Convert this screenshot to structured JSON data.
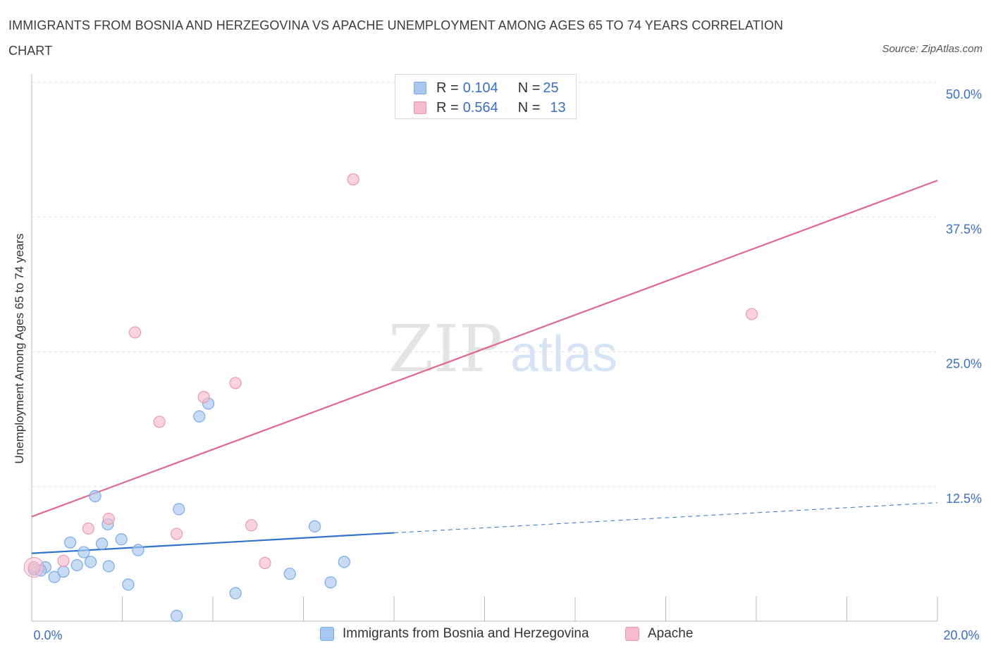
{
  "title_lines": [
    "IMMIGRANTS FROM BOSNIA AND HERZEGOVINA VS APACHE UNEMPLOYMENT AMONG AGES 65 TO 74 YEARS CORRELATION",
    "CHART"
  ],
  "source": "Source: ZipAtlas.com",
  "watermark": {
    "zip": "ZIP",
    "atlas": "atlas"
  },
  "legend": {
    "rows": [
      {
        "r_label": "R = ",
        "r_value": "0.104",
        "n_label": "N = ",
        "n_value": "25"
      },
      {
        "r_label": "R = ",
        "r_value": "0.564",
        "n_label": "N = ",
        "n_value": "13"
      }
    ]
  },
  "colors": {
    "blue_fill": "#a9c8f0",
    "blue_stroke": "#7aaae6",
    "blue_line": "#2f74c8",
    "pink_fill": "#f6bccd",
    "pink_stroke": "#ec97b1",
    "pink_line": "#e0688f",
    "grid": "#dddddd",
    "tick_text": "#3a6fc4"
  },
  "chart_data": {
    "type": "scatter",
    "title": "IMMIGRANTS FROM BOSNIA AND HERZEGOVINA VS APACHE UNEMPLOYMENT AMONG AGES 65 TO 74 YEARS CORRELATION CHART",
    "xlabel": "",
    "ylabel": "Unemployment Among Ages 65 to 74 years",
    "xlim": [
      0,
      20
    ],
    "ylim": [
      0,
      50
    ],
    "x_tick_labels": [
      "0.0%",
      "20.0%"
    ],
    "y_tick_labels": [
      "50.0%",
      "37.5%",
      "25.0%",
      "12.5%"
    ],
    "y_ticks": [
      50,
      37.5,
      25,
      12.5
    ],
    "grid": true,
    "series": [
      {
        "name": "Immigrants from Bosnia and Herzegovina",
        "color": "blue",
        "R": 0.104,
        "N": 25,
        "points": [
          [
            0.05,
            4.8
          ],
          [
            0.3,
            5.0
          ],
          [
            0.5,
            4.1
          ],
          [
            0.7,
            4.6
          ],
          [
            0.85,
            7.3
          ],
          [
            1.0,
            5.2
          ],
          [
            1.15,
            6.4
          ],
          [
            1.3,
            5.5
          ],
          [
            1.4,
            11.6
          ],
          [
            1.55,
            7.2
          ],
          [
            1.7,
            5.1
          ],
          [
            1.68,
            9.0
          ],
          [
            1.98,
            7.6
          ],
          [
            2.13,
            3.4
          ],
          [
            2.35,
            6.6
          ],
          [
            3.2,
            0.5
          ],
          [
            3.25,
            10.4
          ],
          [
            3.7,
            19.0
          ],
          [
            3.9,
            20.2
          ],
          [
            4.5,
            2.6
          ],
          [
            5.7,
            4.4
          ],
          [
            6.25,
            8.8
          ],
          [
            6.6,
            3.6
          ],
          [
            6.9,
            5.5
          ],
          [
            0.2,
            4.7
          ]
        ],
        "trend": {
          "x0": 0,
          "y0": 6.3,
          "x1": 8.0,
          "y1": 8.2,
          "dashed_to_x": 20,
          "dashed_to_y": 11.0
        }
      },
      {
        "name": "Apache",
        "color": "pink",
        "R": 0.564,
        "N": 13,
        "points": [
          [
            0.05,
            5.0
          ],
          [
            0.7,
            5.6
          ],
          [
            1.25,
            8.6
          ],
          [
            1.7,
            9.5
          ],
          [
            2.28,
            26.8
          ],
          [
            2.82,
            18.5
          ],
          [
            3.2,
            8.1
          ],
          [
            3.8,
            20.8
          ],
          [
            4.5,
            22.1
          ],
          [
            4.85,
            8.9
          ],
          [
            5.15,
            5.4
          ],
          [
            7.1,
            41.0
          ],
          [
            15.9,
            28.5
          ]
        ],
        "trend": {
          "x0": 0,
          "y0": 9.7,
          "x1": 20,
          "y1": 40.9
        }
      }
    ]
  },
  "bottom_legend": [
    {
      "label": "Immigrants from Bosnia and Herzegovina"
    },
    {
      "label": "Apache"
    }
  ]
}
